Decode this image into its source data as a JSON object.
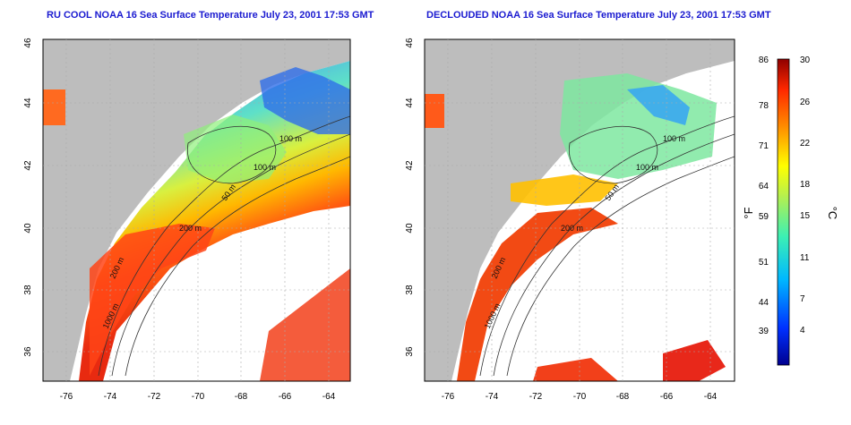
{
  "panels": [
    {
      "title": "RU COOL NOAA 16 Sea Surface Temperature July 23, 2001 17:53 GMT",
      "x_ticks": [
        "-76",
        "-74",
        "-72",
        "-70",
        "-68",
        "-66",
        "-64"
      ],
      "y_ticks": [
        "46",
        "44",
        "42",
        "40",
        "38",
        "36"
      ],
      "contour_labels": [
        "100 m",
        "100 m",
        "50 m",
        "200 m",
        "200 m",
        "1000 m"
      ]
    },
    {
      "title": "DECLOUDED NOAA 16 Sea Surface Temperature July 23, 2001 17:53 GMT",
      "x_ticks": [
        "-76",
        "-74",
        "-72",
        "-70",
        "-68",
        "-66",
        "-64"
      ],
      "y_ticks": [
        "46",
        "44",
        "42",
        "40",
        "38",
        "36"
      ],
      "contour_labels": [
        "100 m",
        "100 m",
        "50 m",
        "200 m",
        "200 m",
        "1000 m"
      ]
    }
  ],
  "colorbar": {
    "fahrenheit_unit": "°F",
    "celsius_unit": "°C",
    "fahrenheit_ticks": [
      "86",
      "78",
      "71",
      "64",
      "59",
      "51",
      "44",
      "39"
    ],
    "celsius_ticks": [
      "30",
      "26",
      "22",
      "18",
      "15",
      "11",
      "7",
      "4"
    ]
  },
  "colors": {
    "land": "#bdbdbd",
    "title": "#1a1ad0",
    "warm": "#e8401a",
    "cool": "#2fbfe0"
  }
}
